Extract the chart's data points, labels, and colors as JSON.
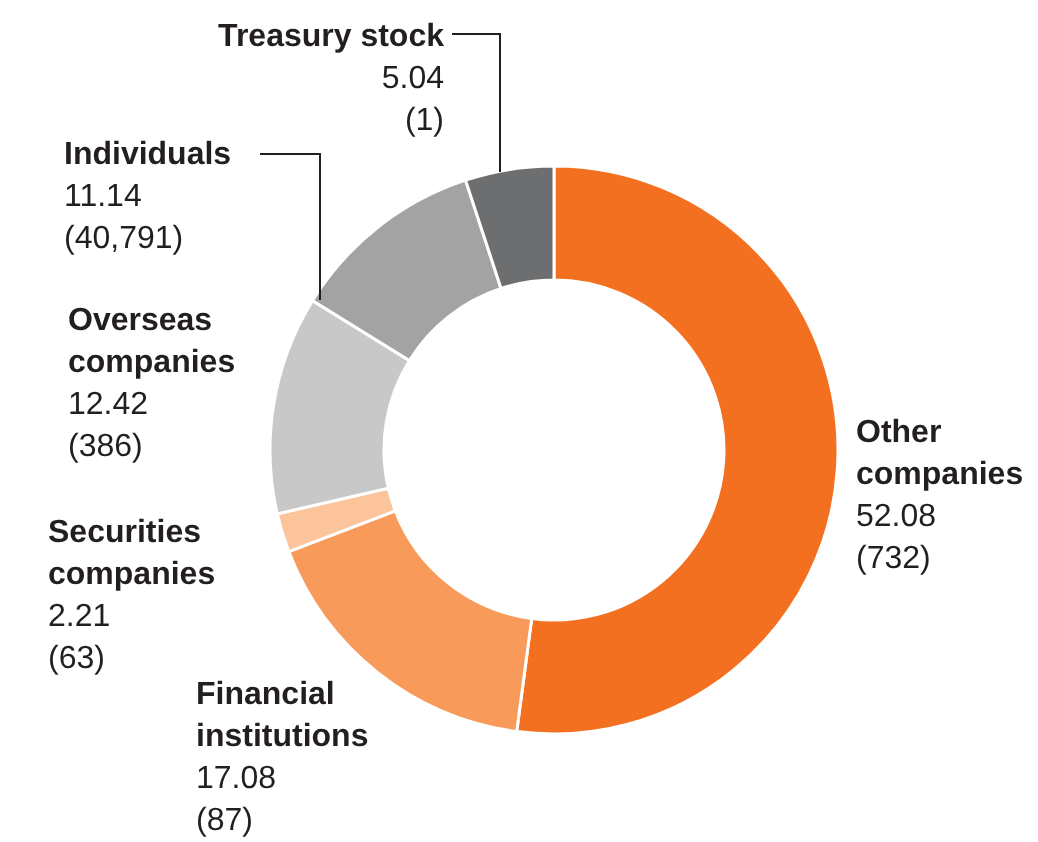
{
  "chart_data": {
    "type": "donut",
    "categories": [
      "Other companies",
      "Financial institutions",
      "Securities companies",
      "Overseas companies",
      "Individuals",
      "Treasury stock"
    ],
    "values": [
      52.08,
      17.08,
      2.21,
      12.42,
      11.14,
      5.04
    ],
    "colors": [
      "#f37021",
      "#f79a5a",
      "#fbc49a",
      "#c8c8c8",
      "#a3a3a3",
      "#6d6e70"
    ],
    "value_labels": [
      "52.08\n(732)",
      "17.08\n(87)",
      "2.21\n(63)",
      "12.42\n(386)",
      "11.14\n(40,791)",
      "5.04\n(1)"
    ]
  }
}
